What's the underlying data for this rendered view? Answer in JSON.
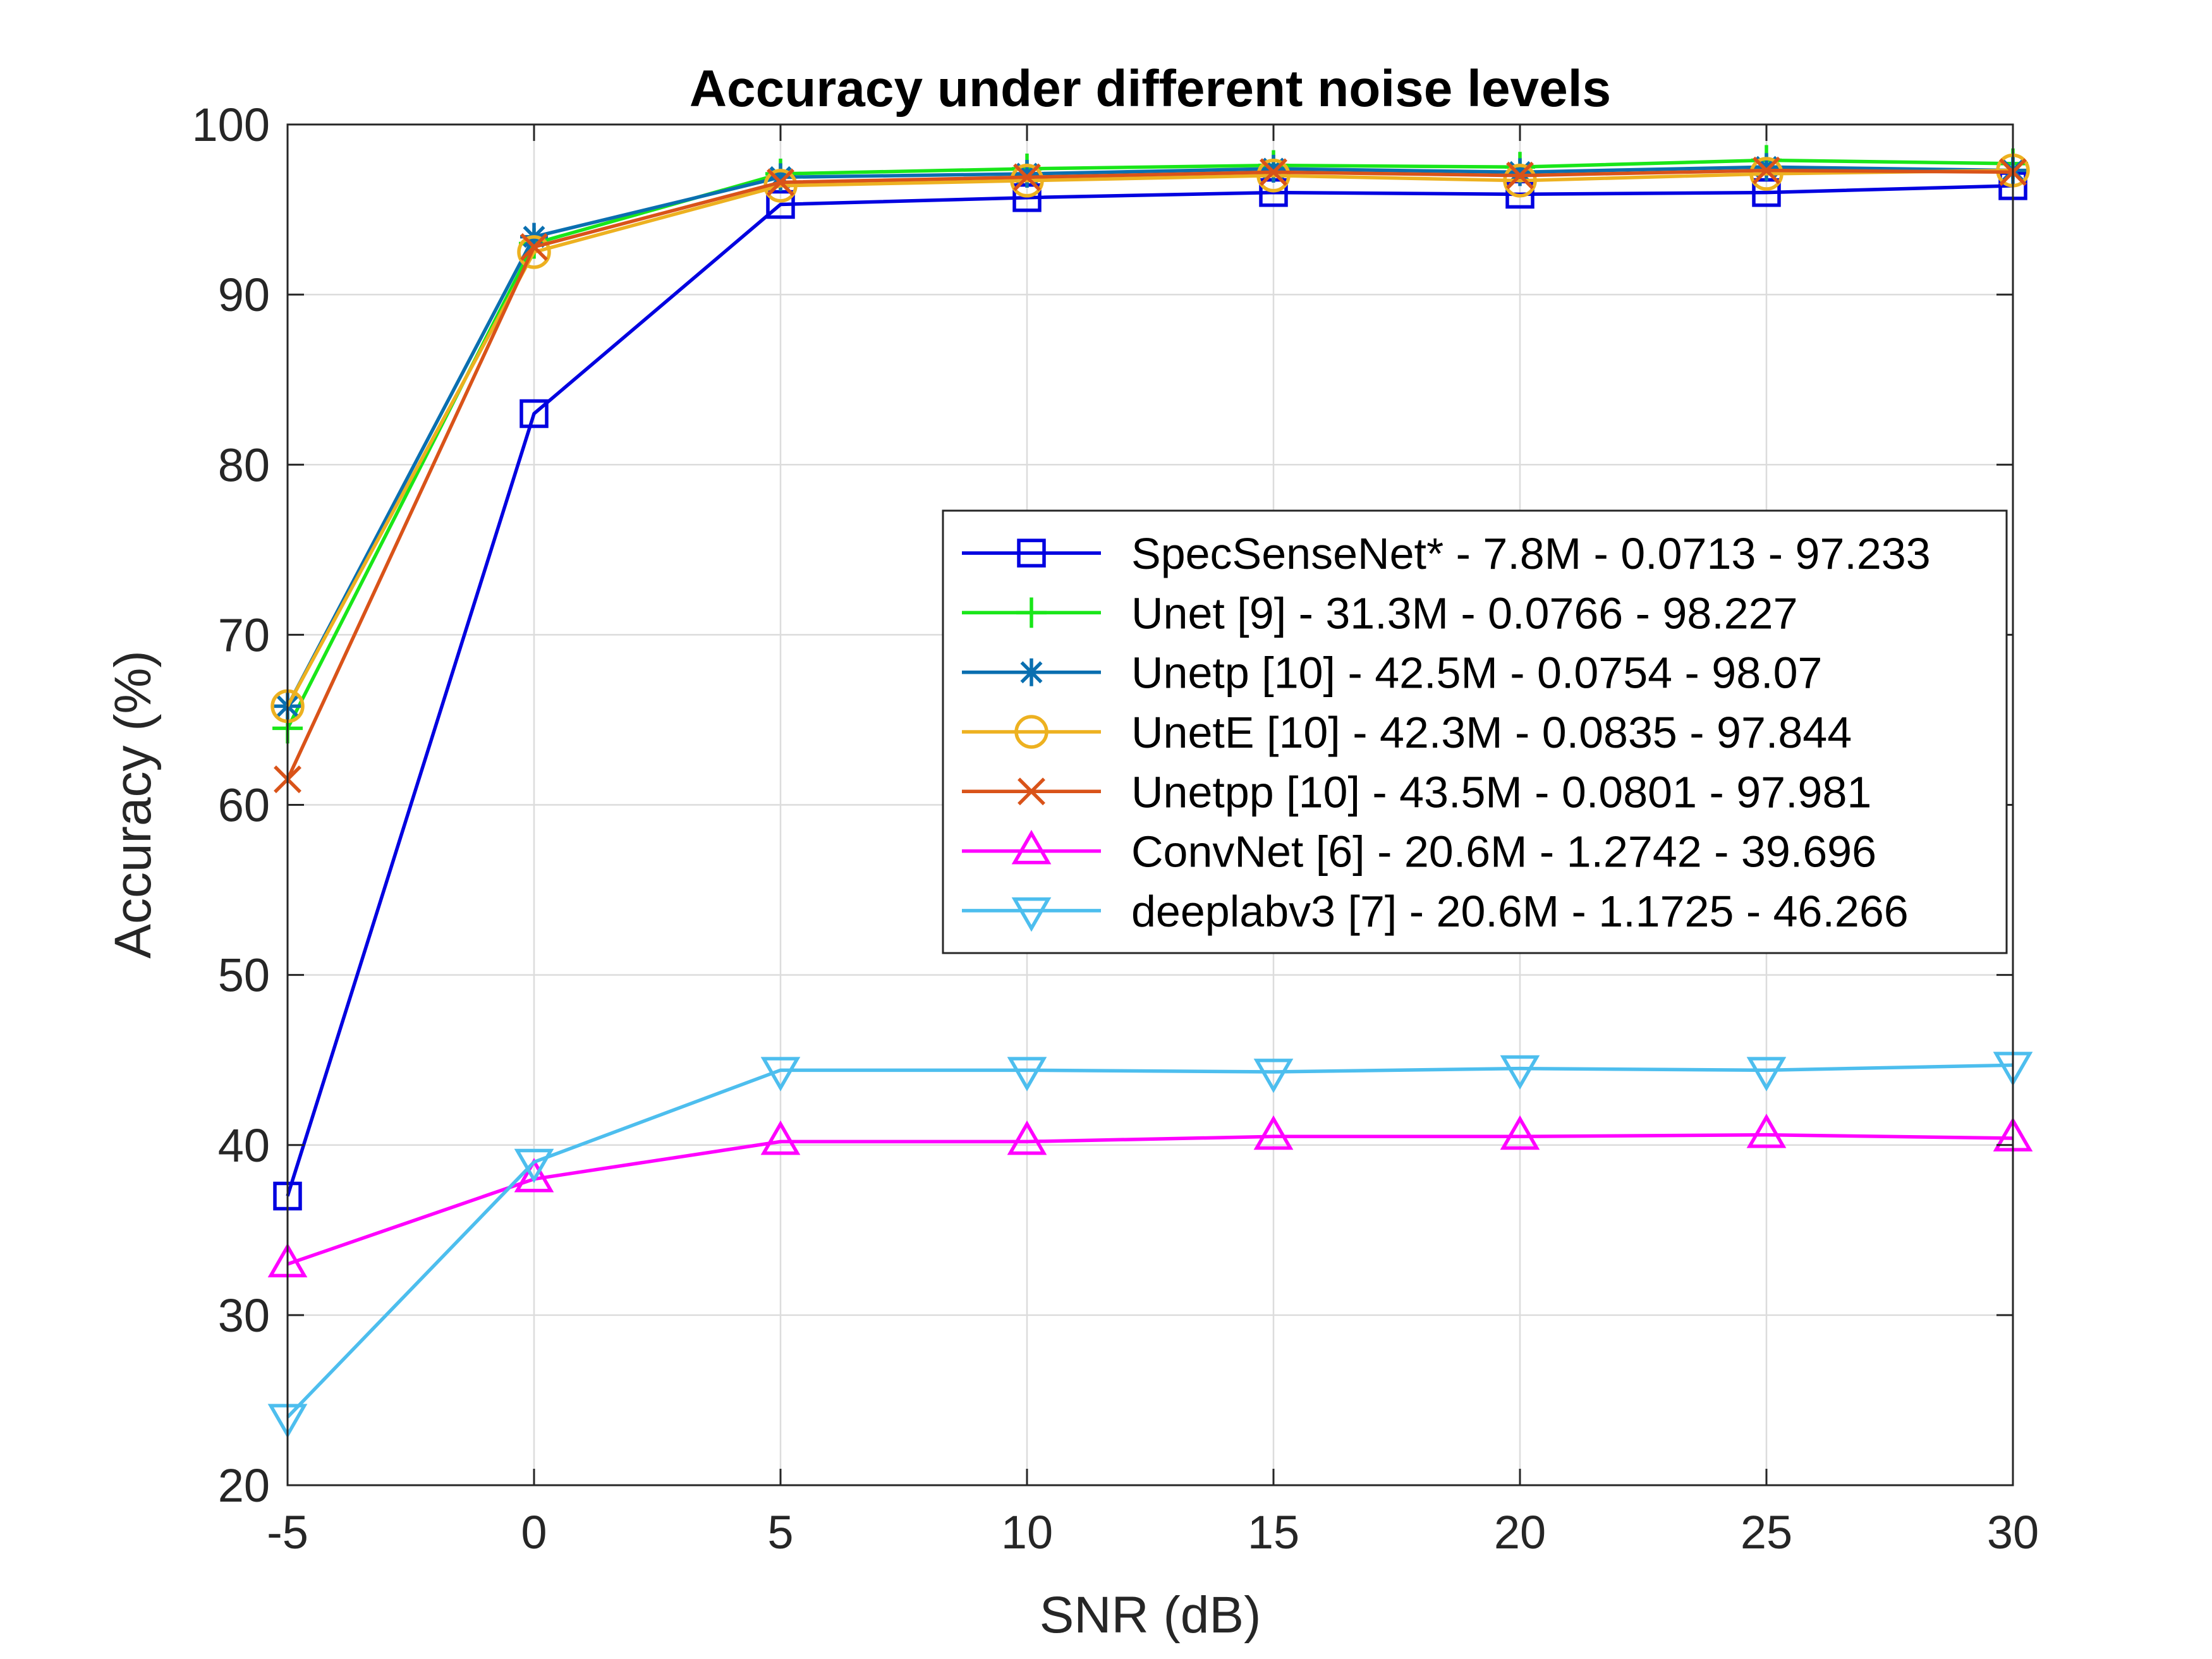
{
  "chart_data": {
    "type": "line",
    "title": "Accuracy under different noise levels",
    "xlabel": "SNR (dB)",
    "ylabel": "Accuracy (%)",
    "xlim": [
      -5,
      30
    ],
    "ylim": [
      20,
      100
    ],
    "xticks": [
      -5,
      0,
      5,
      10,
      15,
      20,
      25,
      30
    ],
    "yticks": [
      20,
      30,
      40,
      50,
      60,
      70,
      80,
      90,
      100
    ],
    "grid": true,
    "legend_position": "center-right",
    "x": [
      -5,
      0,
      5,
      10,
      15,
      20,
      25,
      30
    ],
    "series": [
      {
        "name": "SpecSenseNet* - 7.8M - 0.0713 - 97.233",
        "color": "#0000e0",
        "marker": "square",
        "values": [
          37.0,
          83.0,
          95.3,
          95.7,
          96.0,
          95.9,
          96.0,
          96.4
        ]
      },
      {
        "name": "Unet [9] - 31.3M - 0.0766 - 98.227",
        "color": "#19e619",
        "marker": "plus",
        "values": [
          64.5,
          93.0,
          97.1,
          97.4,
          97.6,
          97.5,
          97.9,
          97.7
        ]
      },
      {
        "name": "Unetp [10] - 42.5M - 0.0754 - 98.07",
        "color": "#0a6fb0",
        "marker": "asterisk",
        "values": [
          65.8,
          93.4,
          96.9,
          97.1,
          97.4,
          97.2,
          97.5,
          97.3
        ]
      },
      {
        "name": "UnetE [10] - 42.3M - 0.0835 - 97.844",
        "color": "#edb120",
        "marker": "circle",
        "values": [
          65.8,
          92.5,
          96.4,
          96.7,
          97.0,
          96.7,
          97.1,
          97.3
        ]
      },
      {
        "name": "Unetpp [10] - 43.5M - 0.0801 - 97.981",
        "color": "#d95319",
        "marker": "x",
        "values": [
          61.5,
          92.8,
          96.6,
          96.9,
          97.2,
          97.0,
          97.3,
          97.2
        ]
      },
      {
        "name": "ConvNet [6] - 20.6M - 1.2742 - 39.696",
        "color": "#ff00ff",
        "marker": "triangle-up",
        "values": [
          33.0,
          38.0,
          40.2,
          40.2,
          40.5,
          40.5,
          40.6,
          40.4
        ]
      },
      {
        "name": "deeplabv3 [7] - 20.6M - 1.1725 - 46.266",
        "color": "#4dbeee",
        "marker": "triangle-down",
        "values": [
          24.0,
          39.0,
          44.4,
          44.4,
          44.3,
          44.5,
          44.4,
          44.7
        ]
      }
    ]
  }
}
